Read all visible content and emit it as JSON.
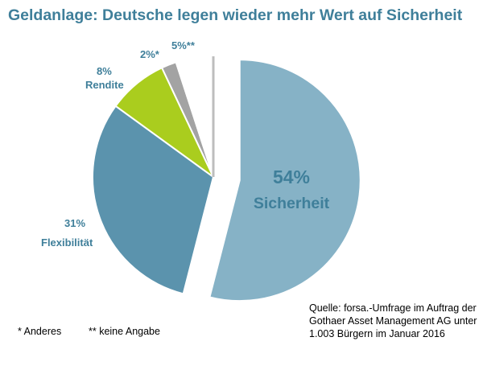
{
  "chart_data": {
    "type": "pie",
    "title": "Geldanlage: Deutsche legen wieder mehr Wert auf Sicherheit",
    "slices": [
      {
        "name": "Sicherheit",
        "value": 54,
        "label_value": "54%",
        "color": "#86b2c6",
        "exploded": true
      },
      {
        "name": "Flexibilität",
        "value": 31,
        "label_value": "31%",
        "color": "#5b93ad",
        "exploded": false
      },
      {
        "name": "Rendite",
        "value": 8,
        "label_value": "8%",
        "color": "#aacd1e",
        "exploded": false
      },
      {
        "name": "",
        "value": 2,
        "label_value": "2%*",
        "color": "#a3a3a3",
        "exploded": false
      },
      {
        "name": "",
        "value": 5,
        "label_value": "5%**",
        "color": "#ffffff",
        "exploded": false
      }
    ],
    "source": [
      "Quelle: forsa.-Umfrage im Auftrag der",
      "Gothaer Asset Management AG  unter",
      "1.003 Bürgern im Januar 2016"
    ],
    "notes": [
      "* Anderes",
      "** keine Angabe"
    ]
  }
}
